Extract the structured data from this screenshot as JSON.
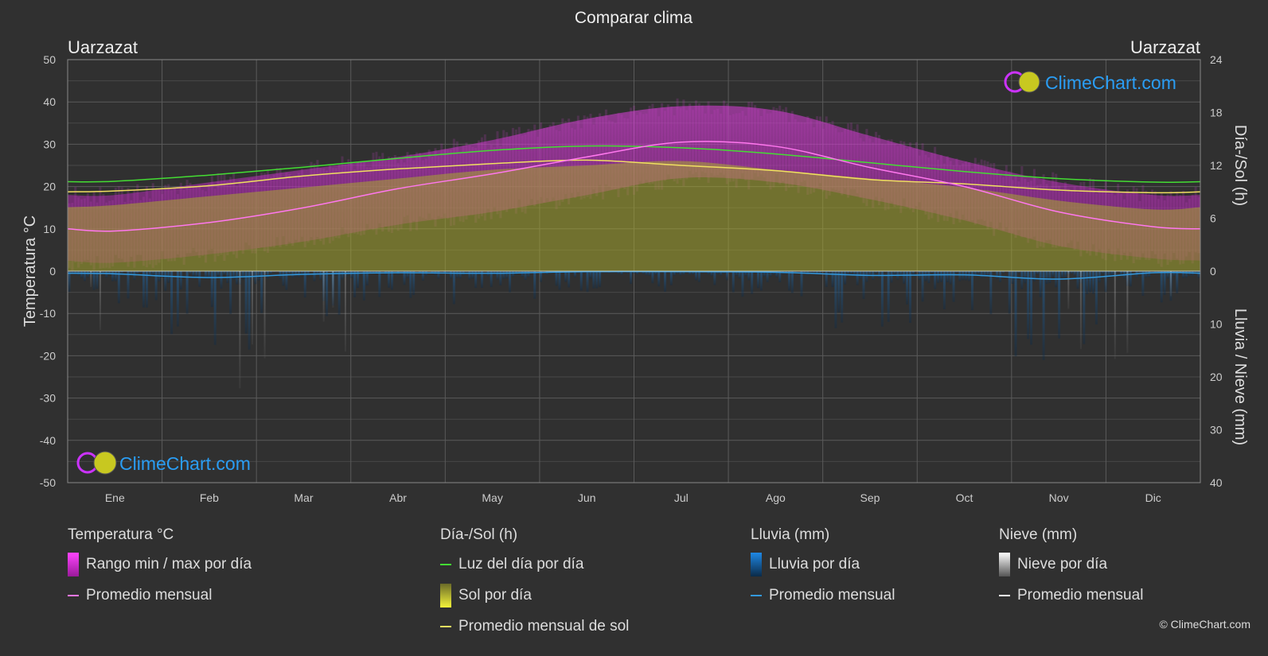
{
  "header": {
    "title": "Comparar clima",
    "left_location": "Uarzazat",
    "right_location": "Uarzazat"
  },
  "axes": {
    "left_label": "Temperatura °C",
    "right_top_label": "Día-/Sol (h)",
    "right_bottom_label": "Lluvia / Nieve (mm)",
    "left_ticks": [
      "50",
      "40",
      "30",
      "20",
      "10",
      "0",
      "-10",
      "-20",
      "-30",
      "-40",
      "-50"
    ],
    "right_top_ticks": [
      "24",
      "18",
      "12",
      "6",
      "0"
    ],
    "right_bottom_ticks": [
      "10",
      "20",
      "30",
      "40"
    ]
  },
  "watermark": "ClimeChart.com",
  "chart_data": {
    "type": "area",
    "title": "Comparar clima",
    "categories": [
      "Ene",
      "Feb",
      "Mar",
      "Abr",
      "May",
      "Jun",
      "Jul",
      "Ago",
      "Sep",
      "Oct",
      "Nov",
      "Dic"
    ],
    "temperature_axis": {
      "label": "Temperatura °C",
      "range": [
        -50,
        50
      ]
    },
    "sun_axis": {
      "label": "Día-/Sol (h)",
      "range": [
        0,
        24
      ]
    },
    "precip_axis": {
      "label": "Lluvia / Nieve (mm)",
      "range": [
        0,
        40
      ]
    },
    "grid": true,
    "series": [
      {
        "name": "Rango min / max por día",
        "kind": "band",
        "axis": "temperature",
        "min": [
          2,
          4,
          7,
          11,
          14,
          18,
          22,
          21,
          17,
          12,
          6,
          3
        ],
        "max": [
          18,
          21,
          24,
          27,
          31,
          36,
          39,
          38,
          32,
          26,
          21,
          18
        ],
        "color": "#cc33cc"
      },
      {
        "name": "Promedio mensual",
        "kind": "line",
        "axis": "temperature",
        "values": [
          9.5,
          11.5,
          15,
          19.5,
          23,
          27,
          30.5,
          29.5,
          24.5,
          20,
          14,
          10.5
        ],
        "color": "#ff77ee"
      },
      {
        "name": "Luz del día por día",
        "kind": "line",
        "axis": "sun",
        "values": [
          10.2,
          10.9,
          11.8,
          12.8,
          13.7,
          14.2,
          14.0,
          13.3,
          12.3,
          11.3,
          10.5,
          10.1
        ],
        "color": "#44dd33"
      },
      {
        "name": "Sol por día",
        "kind": "area",
        "axis": "sun",
        "values": [
          7.5,
          8.5,
          9.5,
          10.5,
          11.5,
          12.0,
          12.5,
          11.5,
          10.5,
          9.5,
          8.0,
          7.0
        ],
        "color": "#b8b830"
      },
      {
        "name": "Promedio mensual de sol",
        "kind": "line",
        "axis": "sun",
        "values": [
          9.1,
          9.7,
          10.8,
          11.6,
          12.2,
          12.6,
          12.0,
          11.4,
          10.4,
          9.9,
          9.2,
          8.9
        ],
        "color": "#f0e060"
      },
      {
        "name": "Lluvia por día",
        "kind": "bars",
        "axis": "precip",
        "color": "#1e88e5"
      },
      {
        "name": "Promedio mensual",
        "kind": "line",
        "axis": "precip",
        "values": [
          0.5,
          1.2,
          0.6,
          0.3,
          0.4,
          0.1,
          0.1,
          0.2,
          0.8,
          0.7,
          1.5,
          0.3
        ],
        "color": "#3399dd"
      },
      {
        "name": "Nieve por día",
        "kind": "bars",
        "axis": "precip",
        "color": "#cccccc"
      },
      {
        "name": "Promedio mensual",
        "kind": "line",
        "axis": "precip",
        "values": [
          0,
          0,
          0,
          0,
          0,
          0,
          0,
          0,
          0,
          0,
          0,
          0
        ],
        "color": "#ffffff"
      }
    ]
  },
  "legend": {
    "temperature": {
      "header": "Temperatura °C",
      "range_label": "Rango min / max por día",
      "avg_label": "Promedio mensual"
    },
    "sun": {
      "header": "Día-/Sol (h)",
      "daylight_label": "Luz del día por día",
      "sunshine_label": "Sol por día",
      "avg_label": "Promedio mensual de sol"
    },
    "rain": {
      "header": "Lluvia (mm)",
      "daily_label": "Lluvia por día",
      "avg_label": "Promedio mensual"
    },
    "snow": {
      "header": "Nieve (mm)",
      "daily_label": "Nieve por día",
      "avg_label": "Promedio mensual"
    }
  },
  "copyright": "© ClimeChart.com"
}
